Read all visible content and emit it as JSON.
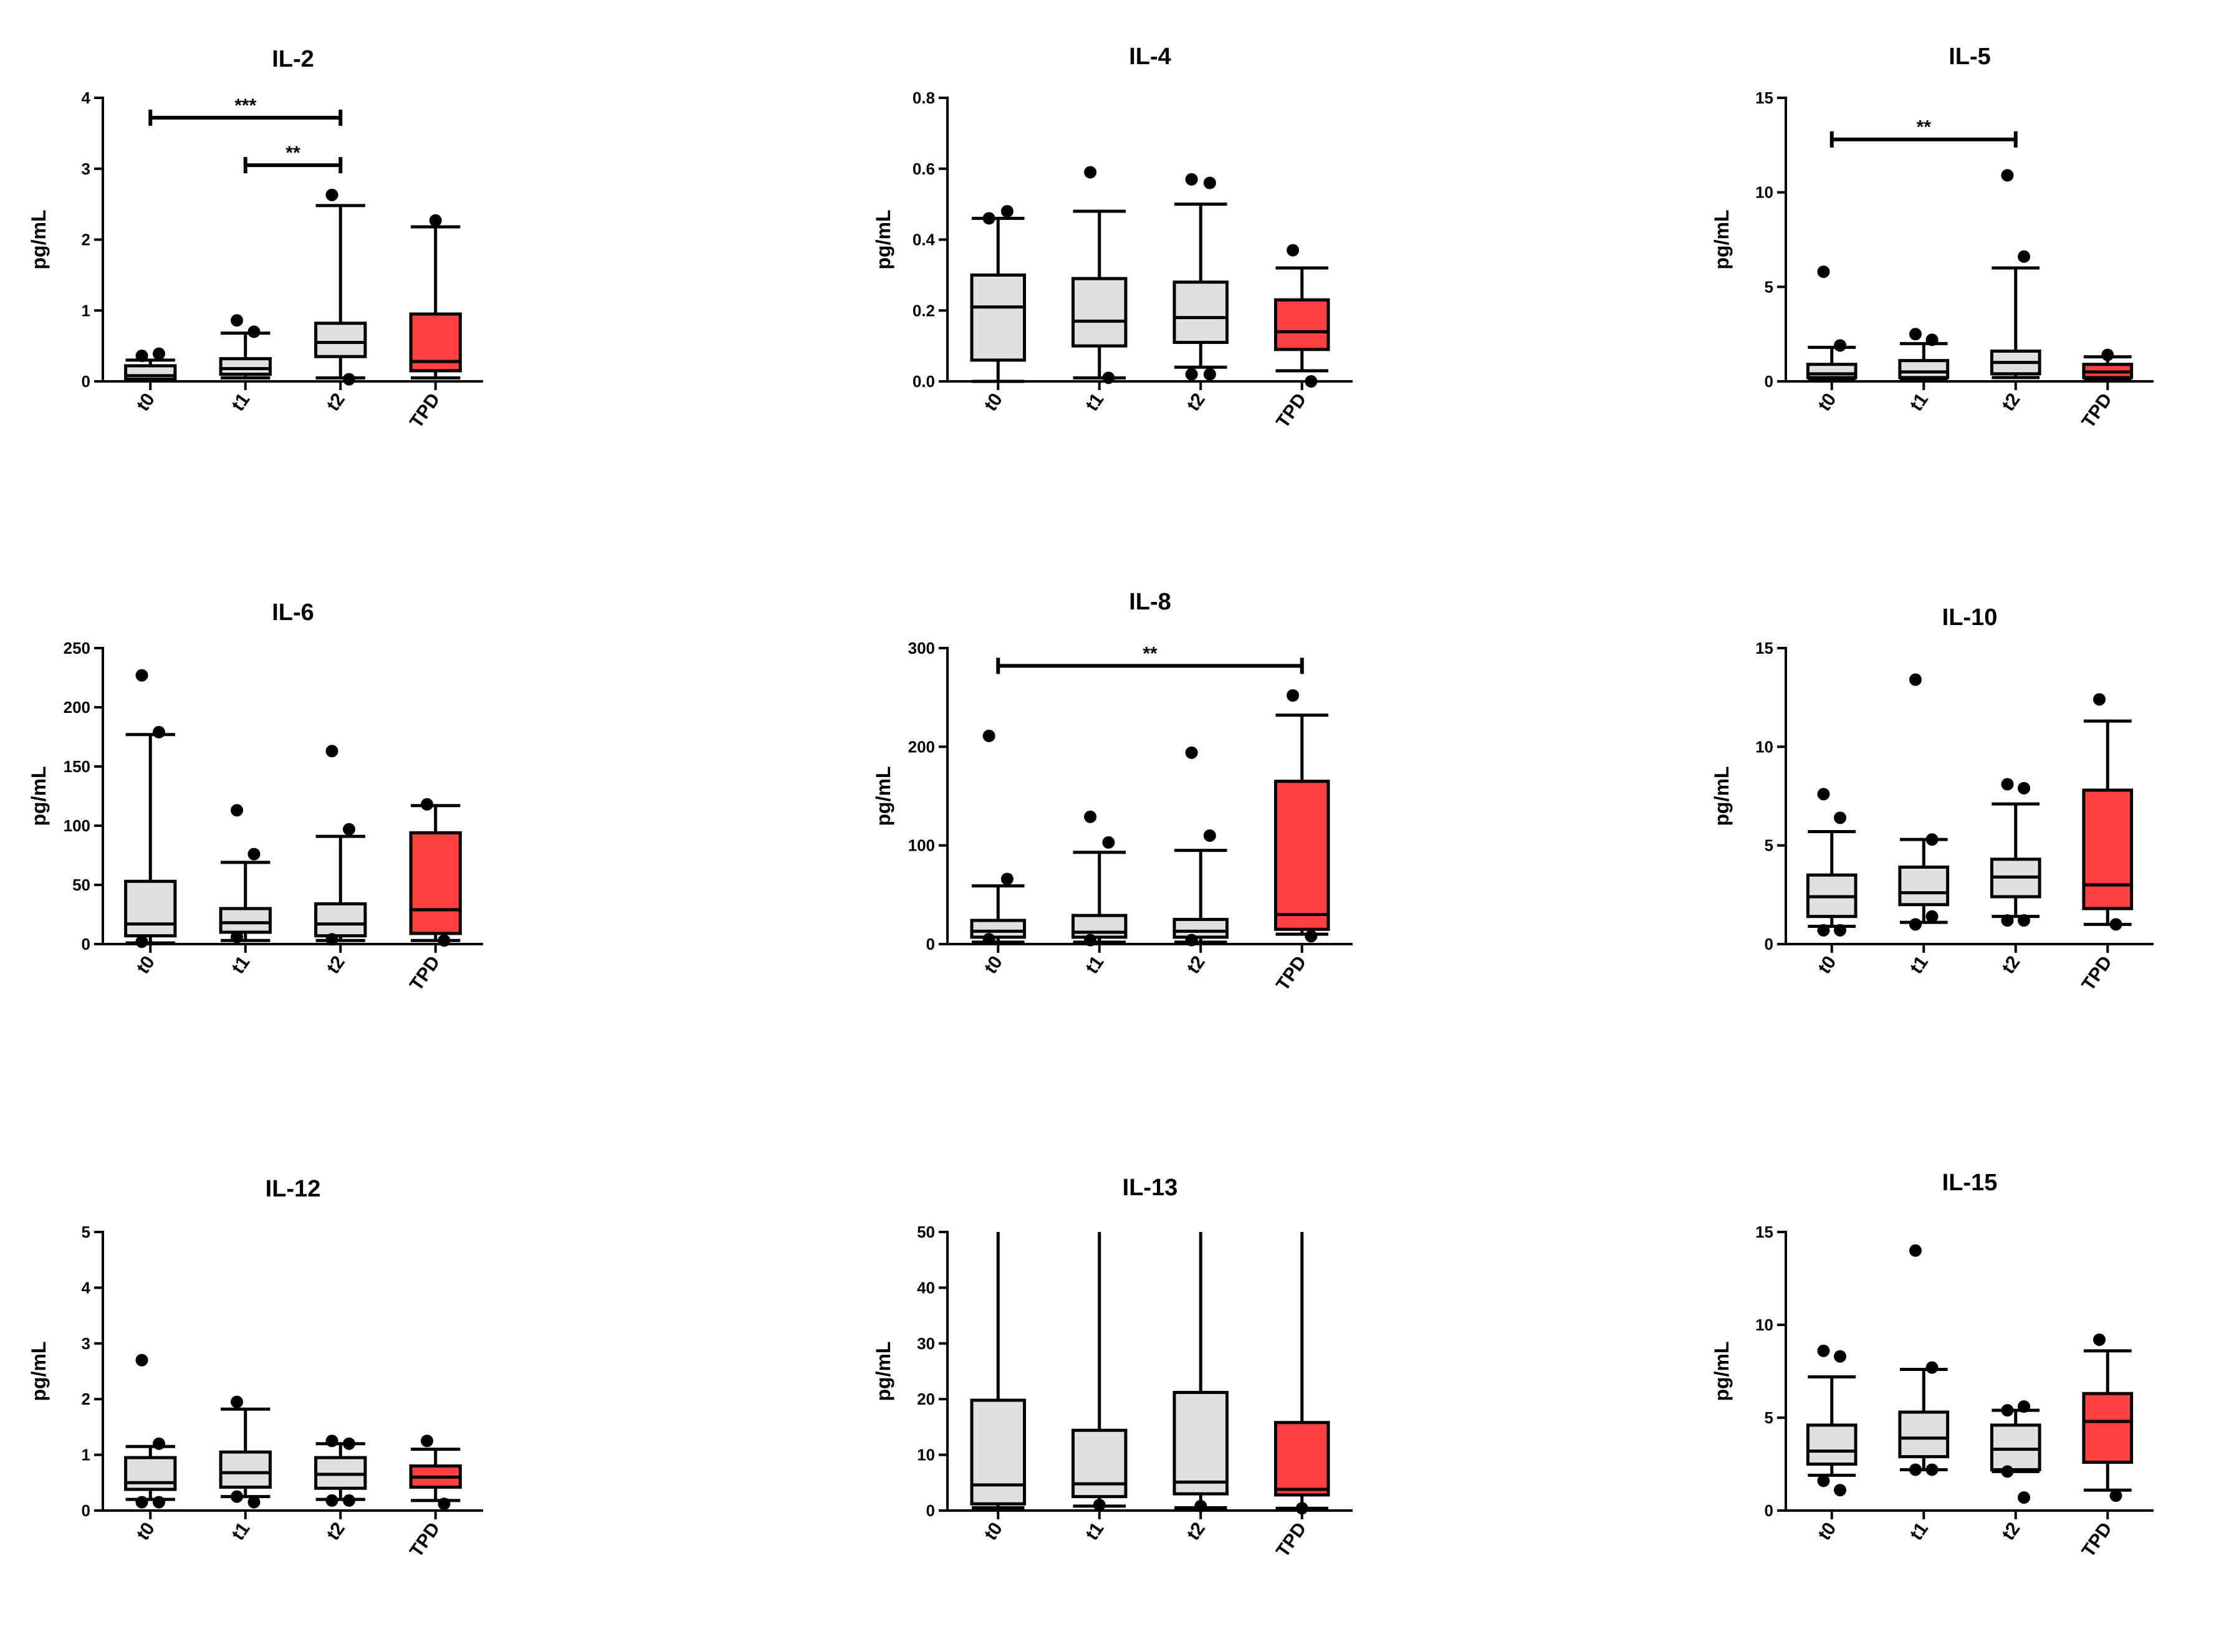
{
  "chart_data": [
    {
      "type": "boxplot",
      "title": "IL-2",
      "ylabel": "pg/mL",
      "categories": [
        "t0",
        "t1",
        "t2",
        "TPD"
      ],
      "ylim": [
        0,
        4
      ],
      "yticks": [
        "0",
        "1",
        "2",
        "3",
        "4"
      ],
      "colors": [
        "#e0e0e0",
        "#e0e0e0",
        "#e0e0e0",
        "#ff4040"
      ],
      "boxes": [
        {
          "low": 0.02,
          "q1": 0.03,
          "median": 0.08,
          "q3": 0.22,
          "high": 0.3,
          "outliers": [
            0.36,
            0.39
          ]
        },
        {
          "low": 0.05,
          "q1": 0.1,
          "median": 0.18,
          "q3": 0.32,
          "high": 0.68,
          "outliers": [
            0.86,
            0.7
          ]
        },
        {
          "low": 0.05,
          "q1": 0.35,
          "median": 0.55,
          "q3": 0.82,
          "high": 2.48,
          "outliers": [
            2.63,
            0.03
          ]
        },
        {
          "low": 0.05,
          "q1": 0.15,
          "median": 0.28,
          "q3": 0.95,
          "high": 2.18,
          "outliers": [
            2.27
          ]
        }
      ],
      "significance": [
        {
          "from": 0,
          "to": 2,
          "label": "***",
          "y": 3.72
        },
        {
          "from": 1,
          "to": 2,
          "label": "**",
          "y": 3.05
        }
      ]
    },
    {
      "type": "boxplot",
      "title": "IL-4",
      "ylabel": "pg/mL",
      "categories": [
        "t0",
        "t1",
        "t2",
        "TPD"
      ],
      "ylim": [
        0,
        0.8
      ],
      "yticks": [
        "0.0",
        "0.2",
        "0.4",
        "0.6",
        "0.8"
      ],
      "colors": [
        "#e0e0e0",
        "#e0e0e0",
        "#e0e0e0",
        "#ff4040"
      ],
      "boxes": [
        {
          "low": 0.0,
          "q1": 0.06,
          "median": 0.21,
          "q3": 0.3,
          "high": 0.46,
          "outliers": [
            0.46,
            0.48
          ]
        },
        {
          "low": 0.01,
          "q1": 0.1,
          "median": 0.17,
          "q3": 0.29,
          "high": 0.48,
          "outliers": [
            0.59,
            0.01
          ]
        },
        {
          "low": 0.04,
          "q1": 0.11,
          "median": 0.18,
          "q3": 0.28,
          "high": 0.5,
          "outliers": [
            0.57,
            0.56,
            0.02,
            0.02
          ]
        },
        {
          "low": 0.03,
          "q1": 0.09,
          "median": 0.14,
          "q3": 0.23,
          "high": 0.32,
          "outliers": [
            0.37,
            0.0
          ]
        }
      ],
      "significance": []
    },
    {
      "type": "boxplot",
      "title": "IL-5",
      "ylabel": "pg/mL",
      "categories": [
        "t0",
        "t1",
        "t2",
        "TPD"
      ],
      "ylim": [
        0,
        15
      ],
      "yticks": [
        "0",
        "5",
        "10",
        "15"
      ],
      "colors": [
        "#e0e0e0",
        "#e0e0e0",
        "#e0e0e0",
        "#ff4040"
      ],
      "boxes": [
        {
          "low": 0.1,
          "q1": 0.2,
          "median": 0.4,
          "q3": 0.9,
          "high": 1.8,
          "outliers": [
            5.8,
            1.9
          ]
        },
        {
          "low": 0.1,
          "q1": 0.2,
          "median": 0.5,
          "q3": 1.1,
          "high": 2.0,
          "outliers": [
            2.5,
            2.2
          ]
        },
        {
          "low": 0.2,
          "q1": 0.4,
          "median": 1.0,
          "q3": 1.6,
          "high": 6.0,
          "outliers": [
            10.9,
            6.6
          ]
        },
        {
          "low": 0.1,
          "q1": 0.2,
          "median": 0.5,
          "q3": 0.9,
          "high": 1.3,
          "outliers": [
            1.4
          ]
        }
      ],
      "significance": [
        {
          "from": 0,
          "to": 2,
          "label": "**",
          "y": 12.8
        }
      ]
    },
    {
      "type": "boxplot",
      "title": "IL-6",
      "ylabel": "pg/mL",
      "categories": [
        "t0",
        "t1",
        "t2",
        "TPD"
      ],
      "ylim": [
        0,
        250
      ],
      "yticks": [
        "0",
        "50",
        "100",
        "150",
        "200",
        "250"
      ],
      "colors": [
        "#e0e0e0",
        "#e0e0e0",
        "#e0e0e0",
        "#ff4040"
      ],
      "boxes": [
        {
          "low": 1,
          "q1": 7,
          "median": 17,
          "q3": 53,
          "high": 177,
          "outliers": [
            227,
            179,
            2
          ]
        },
        {
          "low": 3,
          "q1": 10,
          "median": 18,
          "q3": 30,
          "high": 69,
          "outliers": [
            113,
            76,
            6
          ]
        },
        {
          "low": 3,
          "q1": 7,
          "median": 17,
          "q3": 34,
          "high": 91,
          "outliers": [
            163,
            97,
            4
          ]
        },
        {
          "low": 3,
          "q1": 9,
          "median": 29,
          "q3": 94,
          "high": 117,
          "outliers": [
            118,
            3
          ]
        }
      ],
      "significance": []
    },
    {
      "type": "boxplot",
      "title": "IL-8",
      "ylabel": "pg/mL",
      "categories": [
        "t0",
        "t1",
        "t2",
        "TPD"
      ],
      "ylim": [
        0,
        300
      ],
      "yticks": [
        "0",
        "100",
        "200",
        "300"
      ],
      "colors": [
        "#e0e0e0",
        "#e0e0e0",
        "#e0e0e0",
        "#ff4040"
      ],
      "boxes": [
        {
          "low": 2,
          "q1": 7,
          "median": 13,
          "q3": 24,
          "high": 59,
          "outliers": [
            211,
            66,
            5
          ]
        },
        {
          "low": 2,
          "q1": 7,
          "median": 12,
          "q3": 29,
          "high": 93,
          "outliers": [
            129,
            103,
            4
          ]
        },
        {
          "low": 2,
          "q1": 7,
          "median": 13,
          "q3": 25,
          "high": 95,
          "outliers": [
            194,
            110,
            4
          ]
        },
        {
          "low": 10,
          "q1": 15,
          "median": 30,
          "q3": 165,
          "high": 232,
          "outliers": [
            252,
            8
          ]
        }
      ],
      "significance": [
        {
          "from": 0,
          "to": 3,
          "label": "**",
          "y": 282
        }
      ]
    },
    {
      "type": "boxplot",
      "title": "IL-10",
      "ylabel": "pg/mL",
      "categories": [
        "t0",
        "t1",
        "t2",
        "TPD"
      ],
      "ylim": [
        0,
        15
      ],
      "yticks": [
        "0",
        "5",
        "10",
        "15"
      ],
      "colors": [
        "#e0e0e0",
        "#e0e0e0",
        "#e0e0e0",
        "#ff4040"
      ],
      "boxes": [
        {
          "low": 0.9,
          "q1": 1.4,
          "median": 2.4,
          "q3": 3.5,
          "high": 5.7,
          "outliers": [
            7.6,
            6.4,
            0.7,
            0.7
          ]
        },
        {
          "low": 1.1,
          "q1": 2.0,
          "median": 2.6,
          "q3": 3.9,
          "high": 5.3,
          "outliers": [
            13.4,
            5.3,
            1.0,
            1.4
          ]
        },
        {
          "low": 1.4,
          "q1": 2.4,
          "median": 3.4,
          "q3": 4.3,
          "high": 7.1,
          "outliers": [
            8.1,
            7.9,
            1.2,
            1.2
          ]
        },
        {
          "low": 1.0,
          "q1": 1.8,
          "median": 3.0,
          "q3": 7.8,
          "high": 11.3,
          "outliers": [
            12.4,
            1.0
          ]
        }
      ],
      "significance": []
    },
    {
      "type": "boxplot",
      "title": "IL-12",
      "ylabel": "pg/mL",
      "categories": [
        "t0",
        "t1",
        "t2",
        "TPD"
      ],
      "ylim": [
        0,
        5
      ],
      "yticks": [
        "0",
        "1",
        "2",
        "3",
        "4",
        "5"
      ],
      "colors": [
        "#e0e0e0",
        "#e0e0e0",
        "#e0e0e0",
        "#ff4040"
      ],
      "boxes": [
        {
          "low": 0.2,
          "q1": 0.38,
          "median": 0.5,
          "q3": 0.95,
          "high": 1.15,
          "outliers": [
            2.7,
            1.2,
            0.15,
            0.15
          ]
        },
        {
          "low": 0.25,
          "q1": 0.42,
          "median": 0.68,
          "q3": 1.05,
          "high": 1.82,
          "outliers": [
            1.95,
            0.15,
            0.25
          ]
        },
        {
          "low": 0.2,
          "q1": 0.4,
          "median": 0.65,
          "q3": 0.95,
          "high": 1.2,
          "outliers": [
            1.25,
            1.2,
            0.18,
            0.18
          ]
        },
        {
          "low": 0.18,
          "q1": 0.42,
          "median": 0.6,
          "q3": 0.8,
          "high": 1.1,
          "outliers": [
            1.25,
            0.12
          ]
        }
      ],
      "significance": []
    },
    {
      "type": "boxplot",
      "title": "IL-13",
      "ylabel": "pg/mL",
      "categories": [
        "t0",
        "t1",
        "t2",
        "TPD"
      ],
      "ylim": [
        0,
        50
      ],
      "yticks": [
        "0",
        "10",
        "20",
        "30",
        "40",
        "50"
      ],
      "colors": [
        "#e0e0e0",
        "#e0e0e0",
        "#e0e0e0",
        "#ff4040"
      ],
      "boxes": [
        {
          "low": 0.5,
          "q1": 1.2,
          "median": 4.6,
          "q3": 19.8,
          "high": 50,
          "outliers": []
        },
        {
          "low": 0.8,
          "q1": 2.5,
          "median": 4.8,
          "q3": 14.4,
          "high": 50,
          "outliers": [
            1.0
          ]
        },
        {
          "low": 0.5,
          "q1": 3.0,
          "median": 5.1,
          "q3": 21.2,
          "high": 50,
          "outliers": [
            0.8
          ]
        },
        {
          "low": 0.4,
          "q1": 2.8,
          "median": 3.8,
          "q3": 15.8,
          "high": 50,
          "outliers": [
            0.4
          ]
        }
      ],
      "significance": []
    },
    {
      "type": "boxplot",
      "title": "IL-15",
      "ylabel": "pg/mL",
      "categories": [
        "t0",
        "t1",
        "t2",
        "TPD"
      ],
      "ylim": [
        0,
        15
      ],
      "yticks": [
        "0",
        "5",
        "10",
        "15"
      ],
      "colors": [
        "#e0e0e0",
        "#e0e0e0",
        "#e0e0e0",
        "#ff4040"
      ],
      "boxes": [
        {
          "low": 1.9,
          "q1": 2.5,
          "median": 3.2,
          "q3": 4.6,
          "high": 7.2,
          "outliers": [
            8.6,
            8.3,
            1.6,
            1.1
          ]
        },
        {
          "low": 2.2,
          "q1": 2.9,
          "median": 3.9,
          "q3": 5.3,
          "high": 7.6,
          "outliers": [
            14.0,
            7.7,
            2.2,
            2.2
          ]
        },
        {
          "low": 2.1,
          "q1": 2.2,
          "median": 3.3,
          "q3": 4.6,
          "high": 5.4,
          "outliers": [
            5.4,
            5.6,
            2.1,
            0.7
          ]
        },
        {
          "low": 1.1,
          "q1": 2.6,
          "median": 4.8,
          "q3": 6.3,
          "high": 8.6,
          "outliers": [
            9.2,
            0.8
          ]
        }
      ],
      "significance": []
    }
  ]
}
